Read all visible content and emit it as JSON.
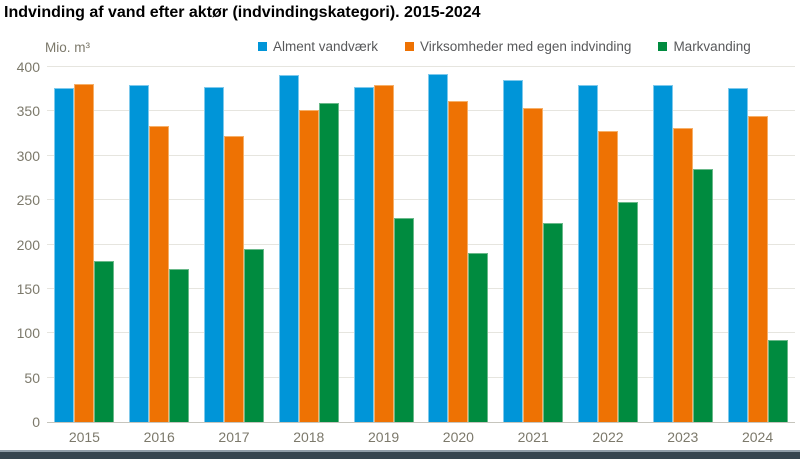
{
  "page": {
    "title": "Indvinding af vand efter aktør (indvindingskategori). 2015-2024",
    "unit_label": "Mio. m³"
  },
  "chart_data": {
    "type": "bar",
    "title": "Indvinding af vand efter aktør (indvindingskategori). 2015-2024",
    "ylabel": "Mio. m³",
    "xlabel": "",
    "categories": [
      "2015",
      "2016",
      "2017",
      "2018",
      "2019",
      "2020",
      "2021",
      "2022",
      "2023",
      "2024"
    ],
    "series": [
      {
        "name": "Alment vandværk",
        "slug": "alment-vandvaerk",
        "color": "#0095d8",
        "border_color": "#7ec9ec",
        "values": [
          376,
          380,
          377,
          391,
          377,
          392,
          385,
          380,
          380,
          376
        ]
      },
      {
        "name": "Virksomheder med egen indvinding",
        "slug": "virksomheder-med-egen-indvinding",
        "color": "#ee7203",
        "border_color": "#f6af68",
        "values": [
          381,
          333,
          322,
          352,
          380,
          362,
          354,
          328,
          331,
          345
        ]
      },
      {
        "name": "Markvanding",
        "slug": "markvanding",
        "color": "#008b3f",
        "border_color": "#6ab98a",
        "values": [
          181,
          172,
          195,
          360,
          230,
          191,
          224,
          248,
          285,
          92
        ]
      }
    ],
    "ylim": [
      0,
      400
    ],
    "yticks": [
      0,
      50,
      100,
      150,
      200,
      250,
      300,
      350,
      400
    ],
    "grid": true,
    "legend_position": "top"
  },
  "colors": {
    "axis_text": "#7c796b",
    "legend_text": "#58595b",
    "gridline": "#e6e5df",
    "baseline": "#c6c5bd",
    "footer_bar": "#36454f",
    "footer_bar_border": "#909da8",
    "background": "#ffffff"
  }
}
